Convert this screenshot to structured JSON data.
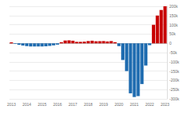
{
  "chart_data": {
    "type": "bar",
    "categories": [
      "2013",
      null,
      null,
      null,
      "2014",
      null,
      null,
      null,
      "2015",
      null,
      null,
      null,
      "2016",
      null,
      null,
      null,
      "2017",
      null,
      null,
      null,
      "2018",
      null,
      null,
      null,
      "2019",
      null,
      null,
      null,
      "2020",
      null,
      null,
      null,
      "2021",
      null,
      null,
      null,
      "2022",
      null,
      null,
      null,
      "2023"
    ],
    "values": [
      5000,
      -3000,
      -8000,
      -12000,
      -15000,
      -17000,
      -17000,
      -17000,
      -17000,
      -16000,
      -14000,
      -11000,
      -7000,
      6000,
      15000,
      16000,
      14000,
      8000,
      8000,
      9000,
      12000,
      14000,
      11000,
      11000,
      12000,
      10000,
      12000,
      6000,
      -15000,
      -90000,
      -150000,
      -270000,
      -290000,
      -285000,
      -220000,
      -120000,
      -10000,
      100000,
      150000,
      180000,
      200000
    ],
    "colors": [
      "#c70000",
      "#1f6cb0",
      "#1f6cb0",
      "#1f6cb0",
      "#1f6cb0",
      "#1f6cb0",
      "#1f6cb0",
      "#1f6cb0",
      "#1f6cb0",
      "#1f6cb0",
      "#1f6cb0",
      "#1f6cb0",
      "#1f6cb0",
      "#c70000",
      "#c70000",
      "#c70000",
      "#c70000",
      "#c70000",
      "#c70000",
      "#c70000",
      "#c70000",
      "#c70000",
      "#c70000",
      "#c70000",
      "#c70000",
      "#c70000",
      "#c70000",
      "#c70000",
      "#1f6cb0",
      "#1f6cb0",
      "#1f6cb0",
      "#1f6cb0",
      "#1f6cb0",
      "#1f6cb0",
      "#1f6cb0",
      "#1f6cb0",
      "#1f6cb0",
      "#c70000",
      "#c70000",
      "#c70000",
      "#c70000"
    ],
    "ylim": [
      -300000,
      200000
    ],
    "yticks": [
      {
        "value": -300000,
        "label": "-300k"
      },
      {
        "value": -250000,
        "label": "-250k"
      },
      {
        "value": -200000,
        "label": "-200k"
      },
      {
        "value": -150000,
        "label": "-150k"
      },
      {
        "value": -100000,
        "label": "-100k"
      },
      {
        "value": -50000,
        "label": "-50k"
      },
      0,
      {
        "value": 50000,
        "label": "50k"
      },
      {
        "value": 100000,
        "label": "100k"
      },
      {
        "value": 150000,
        "label": "150k"
      },
      {
        "value": 200000,
        "label": "200k"
      }
    ],
    "grid": true
  }
}
